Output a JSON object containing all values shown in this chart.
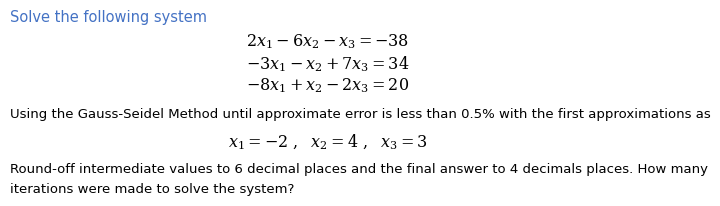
{
  "title": "Solve the following system",
  "title_color": "#4472C4",
  "eq1": "$2x_1 - 6x_2 - x_3 = -38$",
  "eq2": "$-3x_1 - x_2 + 7x_3 = 34$",
  "eq3": "$-8x_1 + x_2 - 2x_3 = 20$",
  "method_text": "Using the Gauss-Seidel Method until approximate error is less than 0.5% with the first approximations as",
  "approx_line": "$x_1 = -2\\ ,\\ \\ x_2 = 4\\ ,\\ \\ x_3 = 3$",
  "footer_line1": "Round-off intermediate values to 6 decimal places and the final answer to 4 decimals places. How many",
  "footer_line2": "iterations were made to solve the system?",
  "bg_color": "#ffffff",
  "text_color": "#000000",
  "eq_fontsize": 11.5,
  "body_fontsize": 9.5,
  "title_fontsize": 10.5
}
